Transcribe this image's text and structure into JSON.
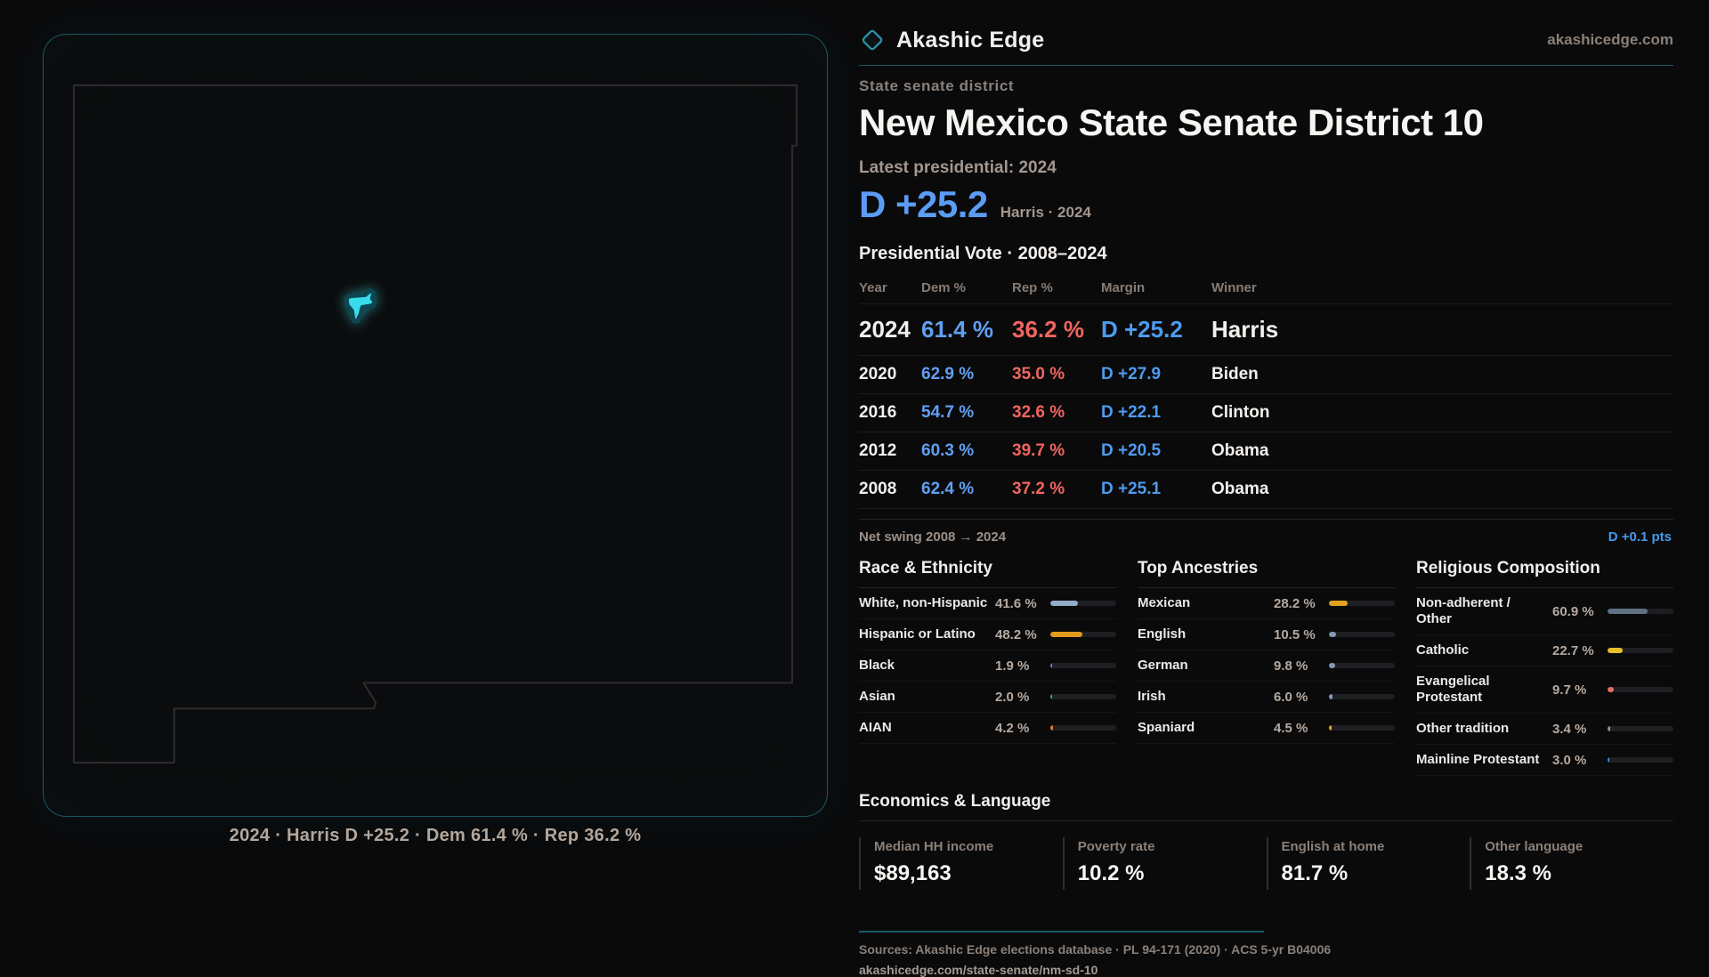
{
  "brand": {
    "name": "Akashic Edge",
    "domain": "akashicedge.com"
  },
  "map": {
    "caption": "2024 · Harris D +25.2 · Dem 61.4 % · Rep 36.2 %",
    "outline_color": "#2d2d2f",
    "district_color": "#38dcec",
    "district_glow": "#0c4651",
    "panel_border_color": "#2698ac"
  },
  "header": {
    "kicker": "State senate district",
    "title": "New Mexico State Senate District 10",
    "latest_label": "Latest presidential: 2024",
    "headline_margin": "D +25.2",
    "headline_sub": "Harris · 2024"
  },
  "vote_table": {
    "title": "Presidential Vote · 2008–2024",
    "columns": [
      "Year",
      "Dem %",
      "Rep %",
      "Margin",
      "Winner"
    ],
    "rows": [
      {
        "year": "2024",
        "dem": "61.4 %",
        "rep": "36.2 %",
        "margin": "D +25.2",
        "winner": "Harris"
      },
      {
        "year": "2020",
        "dem": "62.9 %",
        "rep": "35.0 %",
        "margin": "D +27.9",
        "winner": "Biden"
      },
      {
        "year": "2016",
        "dem": "54.7 %",
        "rep": "32.6 %",
        "margin": "D +22.1",
        "winner": "Clinton"
      },
      {
        "year": "2012",
        "dem": "60.3 %",
        "rep": "39.7 %",
        "margin": "D +20.5",
        "winner": "Obama"
      },
      {
        "year": "2008",
        "dem": "62.4 %",
        "rep": "37.2 %",
        "margin": "D +25.1",
        "winner": "Obama"
      }
    ]
  },
  "net_swing": {
    "label": "Net swing 2008 → 2024",
    "value": "D +0.1 pts"
  },
  "demographics": [
    {
      "title": "Race & Ethnicity",
      "rows": [
        {
          "label": "White, non-Hispanic",
          "value": "41.6 %",
          "pct": 41.6,
          "color": "#93aac8"
        },
        {
          "label": "Hispanic or Latino",
          "value": "48.2 %",
          "pct": 48.2,
          "color": "#e29a1f"
        },
        {
          "label": "Black",
          "value": "1.9 %",
          "pct": 1.9,
          "color": "#7d74d8"
        },
        {
          "label": "Asian",
          "value": "2.0 %",
          "pct": 2.0,
          "color": "#2fae7e"
        },
        {
          "label": "AIAN",
          "value": "4.2 %",
          "pct": 4.2,
          "color": "#e07c28"
        }
      ]
    },
    {
      "title": "Top Ancestries",
      "rows": [
        {
          "label": "Mexican",
          "value": "28.2 %",
          "pct": 28.2,
          "color": "#e2a21f"
        },
        {
          "label": "English",
          "value": "10.5 %",
          "pct": 10.5,
          "color": "#8298b5"
        },
        {
          "label": "German",
          "value": "9.8 %",
          "pct": 9.8,
          "color": "#8298b5"
        },
        {
          "label": "Irish",
          "value": "6.0 %",
          "pct": 6.0,
          "color": "#8298b5"
        },
        {
          "label": "Spaniard",
          "value": "4.5 %",
          "pct": 4.5,
          "color": "#e2a21f"
        }
      ]
    },
    {
      "title": "Religious Composition",
      "rows": [
        {
          "label": "Non-adherent / Other",
          "value": "60.9 %",
          "pct": 60.9,
          "color": "#5f7183"
        },
        {
          "label": "Catholic",
          "value": "22.7 %",
          "pct": 22.7,
          "color": "#e7bd2a"
        },
        {
          "label": "Evangelical Protestant",
          "value": "9.7 %",
          "pct": 9.7,
          "color": "#e26e62"
        },
        {
          "label": "Other tradition",
          "value": "3.4 %",
          "pct": 3.4,
          "color": "#8d959c"
        },
        {
          "label": "Mainline Protestant",
          "value": "3.0 %",
          "pct": 3.0,
          "color": "#3f8fe0"
        }
      ]
    }
  ],
  "economics": {
    "title": "Economics & Language",
    "stats": [
      {
        "label": "Median HH income",
        "value": "$89,163"
      },
      {
        "label": "Poverty rate",
        "value": "10.2 %"
      },
      {
        "label": "English at home",
        "value": "81.7 %"
      },
      {
        "label": "Other language",
        "value": "18.3 %"
      }
    ]
  },
  "footer": {
    "sources": "Sources: Akashic Edge elections database · PL 94-171 (2020) · ACS 5-yr B04006",
    "permalink": "akashicedge.com/state-senate/nm-sd-10"
  },
  "colors": {
    "dem_blue": "#5b9cf5",
    "rep_red": "#f0655f",
    "accent_teal": "#2698ac"
  }
}
